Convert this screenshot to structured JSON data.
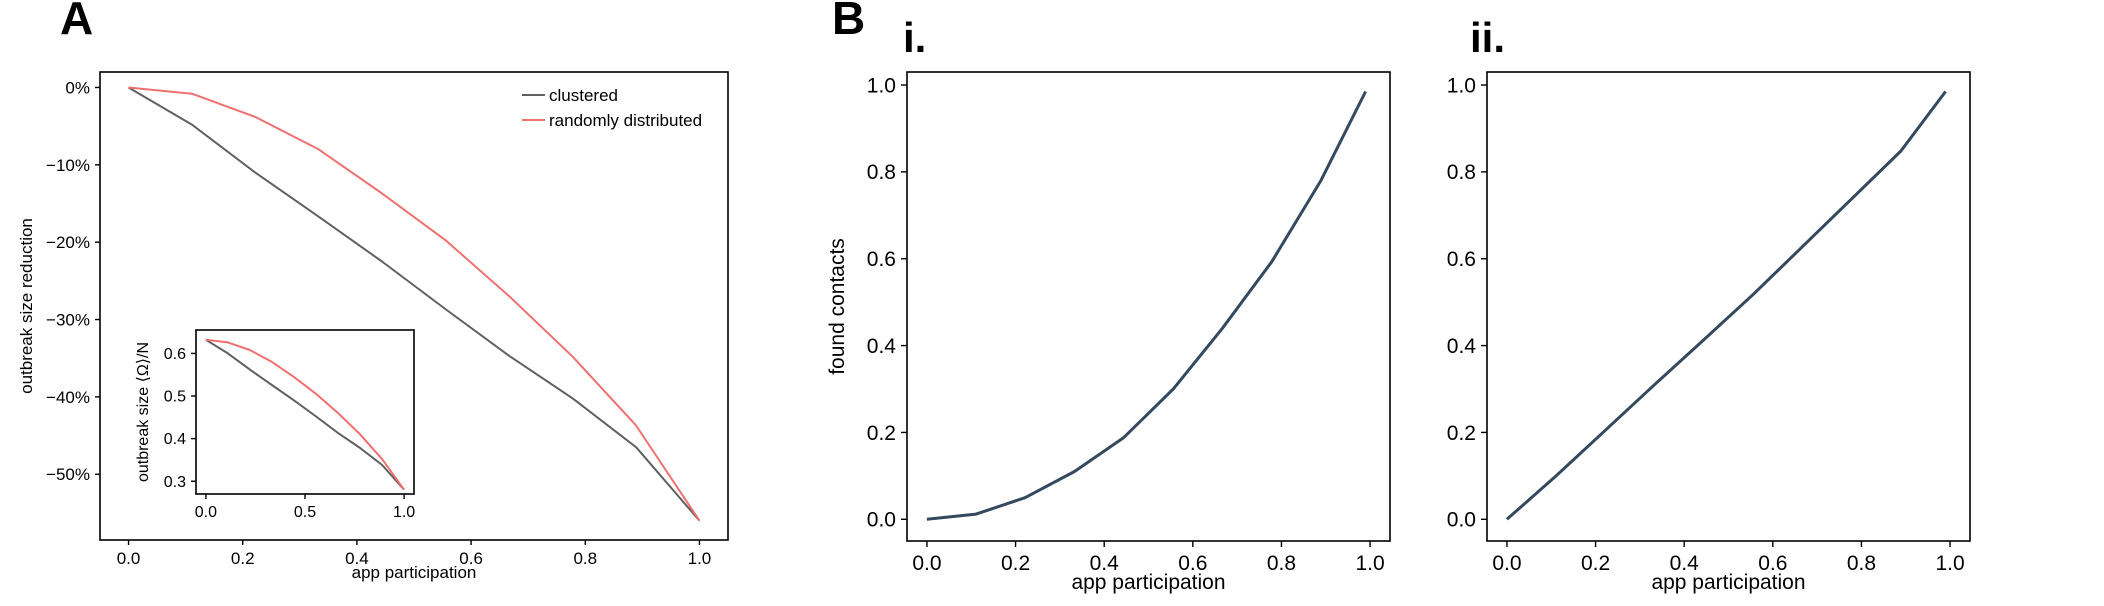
{
  "panel_letters": {
    "a": "A",
    "b": "B"
  },
  "subpanel_labels": {
    "i": "i.",
    "ii": "ii."
  },
  "colors": {
    "clustered": "#606060",
    "random": "#f07070",
    "blue": "#34495e",
    "axis": "#000000"
  },
  "chart_data": [
    {
      "id": "A-main",
      "type": "line",
      "xlabel": "app participation",
      "ylabel": "outbreak size reduction",
      "xlim": [
        -0.05,
        1.05
      ],
      "ylim": [
        -0.585,
        0.02
      ],
      "xticks": [
        0.0,
        0.2,
        0.4,
        0.6,
        0.8,
        1.0
      ],
      "xticklabels": [
        "0.0",
        "0.2",
        "0.4",
        "0.6",
        "0.8",
        "1.0"
      ],
      "yticks": [
        0.0,
        -0.1,
        -0.2,
        -0.3,
        -0.4,
        -0.5
      ],
      "yticklabels": [
        "0%",
        "−10%",
        "−20%",
        "−30%",
        "−40%",
        "−50%"
      ],
      "legend_position": "top-right",
      "series": [
        {
          "name": "clustered",
          "color_key": "clustered",
          "x": [
            0.0,
            0.111,
            0.222,
            0.333,
            0.444,
            0.556,
            0.667,
            0.778,
            0.889,
            1.0
          ],
          "y": [
            0.0,
            -0.048,
            -0.11,
            -0.167,
            -0.225,
            -0.287,
            -0.347,
            -0.402,
            -0.465,
            -0.56
          ]
        },
        {
          "name": "randomly distributed",
          "color_key": "random",
          "x": [
            0.0,
            0.111,
            0.222,
            0.333,
            0.444,
            0.556,
            0.667,
            0.778,
            0.889,
            1.0
          ],
          "y": [
            0.0,
            -0.008,
            -0.038,
            -0.08,
            -0.137,
            -0.198,
            -0.27,
            -0.348,
            -0.437,
            -0.56
          ]
        }
      ]
    },
    {
      "id": "A-inset",
      "type": "line",
      "xlabel": "",
      "ylabel": "outbreak size ⟨Ω⟩/N",
      "xlim": [
        -0.05,
        1.05
      ],
      "ylim": [
        0.27,
        0.655
      ],
      "xticks": [
        0.0,
        0.5,
        1.0
      ],
      "xticklabels": [
        "0.0",
        "0.5",
        "1.0"
      ],
      "yticks": [
        0.3,
        0.4,
        0.5,
        0.6
      ],
      "yticklabels": [
        "0.3",
        "0.4",
        "0.5",
        "0.6"
      ],
      "series": [
        {
          "color_key": "clustered",
          "x": [
            0.0,
            0.111,
            0.222,
            0.333,
            0.444,
            0.556,
            0.667,
            0.778,
            0.889,
            1.0
          ],
          "y": [
            0.632,
            0.6,
            0.562,
            0.526,
            0.49,
            0.452,
            0.413,
            0.378,
            0.338,
            0.28
          ]
        },
        {
          "color_key": "random",
          "x": [
            0.0,
            0.111,
            0.222,
            0.333,
            0.444,
            0.556,
            0.667,
            0.778,
            0.889,
            1.0
          ],
          "y": [
            0.632,
            0.626,
            0.608,
            0.58,
            0.545,
            0.505,
            0.46,
            0.41,
            0.352,
            0.28
          ]
        }
      ]
    },
    {
      "id": "B-i",
      "type": "line",
      "xlabel": "app participation",
      "ylabel": "found contacts",
      "xlim": [
        -0.045,
        1.045
      ],
      "ylim": [
        -0.05,
        1.03
      ],
      "xticks": [
        0.0,
        0.2,
        0.4,
        0.6,
        0.8,
        1.0
      ],
      "xticklabels": [
        "0.0",
        "0.2",
        "0.4",
        "0.6",
        "0.8",
        "1.0"
      ],
      "yticks": [
        0.0,
        0.2,
        0.4,
        0.6,
        0.8,
        1.0
      ],
      "yticklabels": [
        "0.0",
        "0.2",
        "0.4",
        "0.6",
        "0.8",
        "1.0"
      ],
      "series": [
        {
          "color_key": "blue",
          "x": [
            0.0,
            0.111,
            0.222,
            0.333,
            0.444,
            0.556,
            0.667,
            0.778,
            0.889,
            0.99
          ],
          "y": [
            0.0,
            0.012,
            0.05,
            0.11,
            0.188,
            0.3,
            0.44,
            0.593,
            0.78,
            0.985
          ]
        }
      ]
    },
    {
      "id": "B-ii",
      "type": "line",
      "xlabel": "app participation",
      "ylabel": "",
      "xlim": [
        -0.045,
        1.045
      ],
      "ylim": [
        -0.05,
        1.03
      ],
      "xticks": [
        0.0,
        0.2,
        0.4,
        0.6,
        0.8,
        1.0
      ],
      "xticklabels": [
        "0.0",
        "0.2",
        "0.4",
        "0.6",
        "0.8",
        "1.0"
      ],
      "yticks": [
        0.0,
        0.2,
        0.4,
        0.6,
        0.8,
        1.0
      ],
      "yticklabels": [
        "0.0",
        "0.2",
        "0.4",
        "0.6",
        "0.8",
        "1.0"
      ],
      "series": [
        {
          "color_key": "blue",
          "x": [
            0.0,
            0.111,
            0.222,
            0.333,
            0.444,
            0.556,
            0.667,
            0.778,
            0.889,
            0.99
          ],
          "y": [
            0.0,
            0.1,
            0.205,
            0.31,
            0.413,
            0.518,
            0.628,
            0.738,
            0.848,
            0.985
          ]
        }
      ]
    }
  ]
}
